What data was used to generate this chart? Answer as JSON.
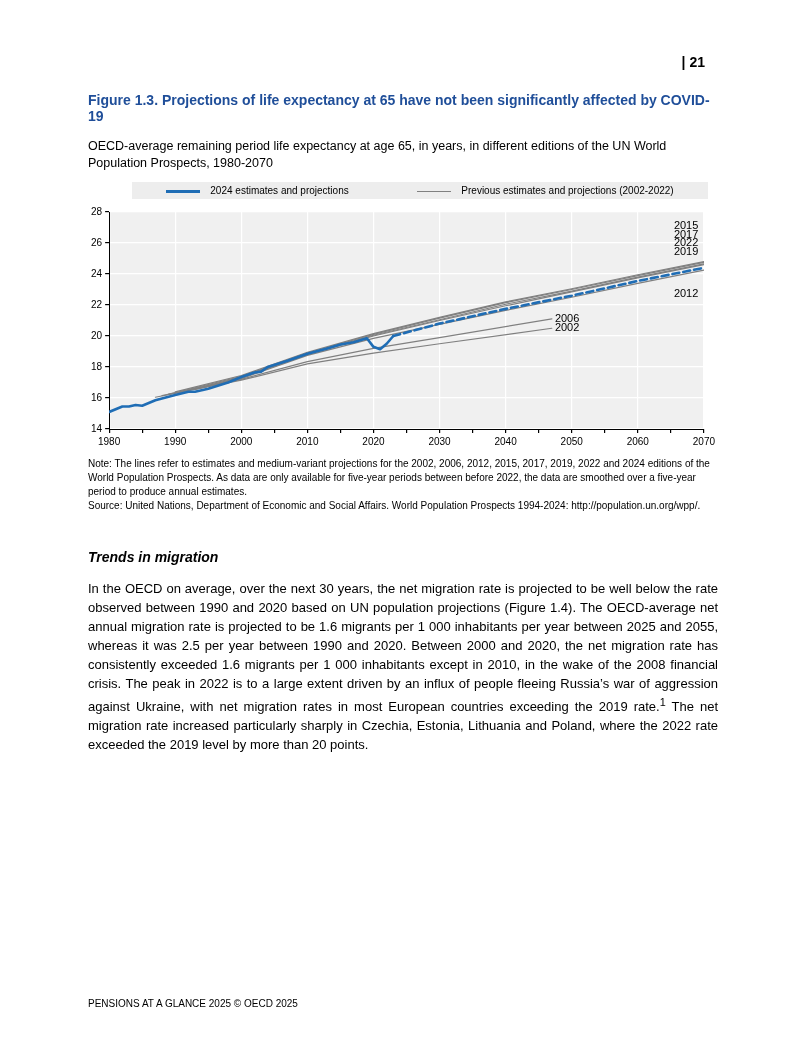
{
  "chart_data": {
    "type": "line",
    "title": "Figure 1.3. Projections of life expectancy at 65 have not been significantly affected by COVID-19",
    "subtitle": "OECD-average remaining period life expectancy at age 65, in years, in different editions of the UN World Population Prospects, 1980-2070",
    "legend_title": "Previous estimates and projections (2002-2022)",
    "xlim": [
      1980,
      2070
    ],
    "xticks": [
      1980,
      {
        "value": 1985,
        "label": null
      },
      1990,
      {
        "value": 1995,
        "label": null
      },
      2000,
      {
        "value": 2005,
        "label": null
      },
      2010,
      {
        "value": 2015,
        "label": null
      },
      2020,
      {
        "value": 2025,
        "label": null
      },
      2030,
      {
        "value": 2035,
        "label": null
      },
      2040,
      {
        "value": 2045,
        "label": null
      },
      2050,
      {
        "value": 2055,
        "label": null
      },
      2060,
      {
        "value": 2065,
        "label": null
      },
      2070
    ],
    "ylim": [
      14,
      28
    ],
    "yticks": [
      14,
      16,
      18,
      20,
      22,
      24,
      26,
      28
    ],
    "grid": true,
    "legend": "top",
    "marker": "none",
    "series": [
      {
        "name": "2024 estimates and projections",
        "color": "#1f6db5",
        "line_style": "solid",
        "x": [
          1980,
          1982,
          1983,
          1984,
          1985,
          1987,
          1990,
          1992,
          1993,
          1995,
          1998,
          2000,
          2002,
          2003,
          2004,
          2007,
          2010,
          2013,
          2015,
          2017,
          2019,
          2020,
          2021,
          2022,
          2023
        ],
        "values": [
          15.1,
          15.45,
          15.45,
          15.55,
          15.5,
          15.85,
          16.2,
          16.4,
          16.4,
          16.6,
          17.0,
          17.35,
          17.65,
          17.7,
          18.0,
          18.4,
          18.85,
          19.2,
          19.45,
          19.6,
          19.85,
          19.3,
          19.15,
          19.5,
          20.0
        ]
      },
      {
        "color": "#1f6db5",
        "line_style": "dashed",
        "x": [
          2023,
          2030,
          2040,
          2050,
          2060,
          2070
        ],
        "values": [
          20.0,
          20.8,
          21.75,
          22.6,
          23.55,
          24.4
        ]
      },
      {
        "name": "2015",
        "color": "#808080",
        "line_style": "solid",
        "x": [
          1990,
          2000,
          2010,
          2020,
          2030,
          2040,
          2050,
          2060,
          2070
        ],
        "values": [
          16.4,
          17.45,
          18.95,
          20.15,
          21.2,
          22.2,
          23.05,
          23.95,
          24.8
        ]
      },
      {
        "name": "2017",
        "color": "#808080",
        "line_style": "solid",
        "x": [
          1991,
          2000,
          2010,
          2020,
          2030,
          2040,
          2050,
          2060,
          2070
        ],
        "values": [
          16.45,
          17.4,
          18.9,
          20.1,
          21.15,
          22.15,
          23.0,
          23.9,
          24.75
        ]
      },
      {
        "name": "2022",
        "color": "#808080",
        "line_style": "solid",
        "x": [
          1992,
          2000,
          2010,
          2020,
          2030,
          2040,
          2050,
          2060,
          2070
        ],
        "values": [
          16.5,
          17.35,
          18.85,
          20.05,
          21.05,
          22.05,
          22.9,
          23.8,
          24.65
        ]
      },
      {
        "name": "2019",
        "color": "#808080",
        "line_style": "solid",
        "x": [
          1993,
          2000,
          2010,
          2020,
          2030,
          2040,
          2050,
          2060,
          2070
        ],
        "values": [
          16.55,
          17.3,
          18.8,
          20.0,
          21.0,
          21.95,
          22.85,
          23.75,
          24.6
        ]
      },
      {
        "name": "2012",
        "color": "#808080",
        "line_style": "solid",
        "x": [
          1989,
          2000,
          2010,
          2020,
          2030,
          2040,
          2050,
          2060,
          2070
        ],
        "values": [
          16.25,
          17.25,
          18.75,
          19.85,
          20.75,
          21.65,
          22.5,
          23.4,
          24.25
        ]
      },
      {
        "name": "2006",
        "color": "#808080",
        "line_style": "solid",
        "x": [
          1988,
          2000,
          2010,
          2020,
          2030,
          2047
        ],
        "values": [
          16.15,
          17.2,
          18.35,
          19.2,
          19.9,
          21.1
        ]
      },
      {
        "name": "2002",
        "color": "#808080",
        "line_style": "solid",
        "x": [
          1987,
          2000,
          2010,
          2020,
          2030,
          2047
        ],
        "values": [
          16.05,
          17.15,
          18.2,
          18.9,
          19.5,
          20.5
        ]
      }
    ],
    "annotations": [
      "Note: The lines refer to estimates and medium-variant projections for the 2002, 2006, 2012, 2015, 2017, 2019, 2022 and 2024 editions of the World Population Prospects. As data are only available for five-year periods between before 2022, the data are smoothed over a five-year period to produce annual estimates.",
      "Source: United Nations, Department of Economic and Social Affairs. World Population Prospects 1994-2024: http://population.un.org/wpp/.",
      "Trends in migration",
      "In the OECD on average, over the next 30 years, the net migration rate is projected to be well below the rate observed between 1990 and 2020 based on UN population projections (Figure 1.4). The OECD-average net annual migration rate is projected to be 1.6 migrants per 1 000 inhabitants per year between 2025 and 2055, whereas it was 2.5 per year between 1990 and 2020. Between 2000 and 2020, the net migration rate has consistently exceeded 1.6 migrants per 1 000 inhabitants except in 2010, in the wake of the 2008 financial crisis. The peak in 2022 is to a large extent driven by an influx of people fleeing Russia’s war of aggression against Ukraine, with net migration rates in most European countries exceeding the 2019 rate.$^{1}$ The net migration rate increased particularly sharply in Czechia, Estonia, Lithuania and Poland, where the 2022 rate exceeded the 2019 level by more than 20 points.",
      "PENSIONS AT A GLANCE 2025 © OECD 2025",
      "| 21"
    ]
  }
}
